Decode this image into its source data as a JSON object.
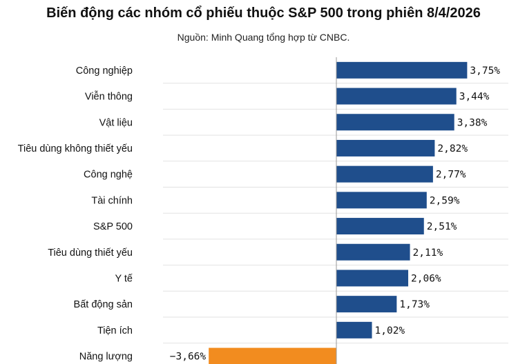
{
  "header": {
    "title": "Biến động các nhóm cổ phiếu thuộc S&P 500 trong phiên 8/4/2026",
    "source": "Nguồn: Minh Quang tổng hợp từ CNBC."
  },
  "colors": {
    "positive": "#1f4e8c",
    "negative": "#f28c1f",
    "grid": "#e2e2e2",
    "zero_line": "#999999"
  },
  "chart_data": {
    "type": "bar",
    "orientation": "horizontal",
    "title": "Biến động các nhóm cổ phiếu thuộc S&P 500 trong phiên 8/4/2026",
    "xlabel": "",
    "ylabel": "",
    "unit": "%",
    "xlim": [
      -4.0,
      4.2
    ],
    "categories": [
      "Công nghiệp",
      "Viễn thông",
      "Vật liệu",
      "Tiêu dùng không thiết yếu",
      "Công nghệ",
      "Tài chính",
      "S&P 500",
      "Tiêu dùng thiết yếu",
      "Y tế",
      "Bất động sản",
      "Tiện ích",
      "Năng lượng"
    ],
    "values": [
      3.75,
      3.44,
      3.38,
      2.82,
      2.77,
      2.59,
      2.51,
      2.11,
      2.06,
      1.73,
      1.02,
      -3.66
    ],
    "labels": [
      "3,75%",
      "3,44%",
      "3,38%",
      "2,82%",
      "2,77%",
      "2,59%",
      "2,51%",
      "2,11%",
      "2,06%",
      "1,73%",
      "1,02%",
      "−3,66%"
    ]
  }
}
